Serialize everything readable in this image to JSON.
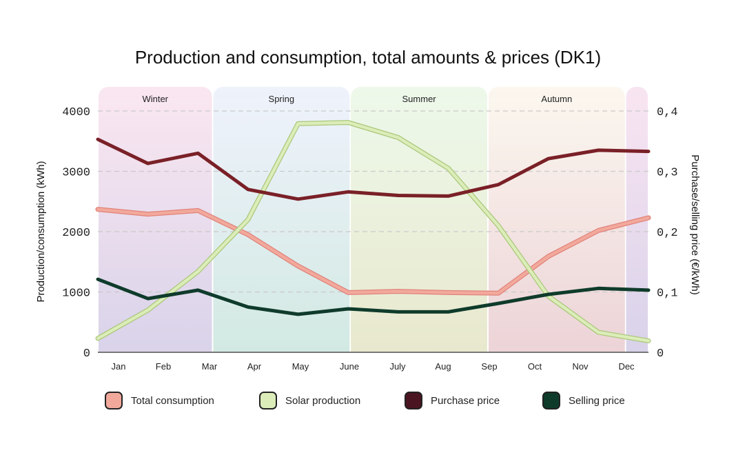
{
  "chart_data": {
    "type": "line",
    "title": "Production and consumption, total amounts & prices (DK1)",
    "ylabel": "Production/consumption (kWh)",
    "y2label": "Purchase/selling price (€/kWh)",
    "ylim": [
      0,
      4400
    ],
    "y2lim": [
      0,
      0.44
    ],
    "yticks": [
      "0",
      "1000",
      "2000",
      "3000",
      "4000"
    ],
    "y2ticks": [
      "0",
      "0,1",
      "0,2",
      "0,3",
      "0,4"
    ],
    "categories": [
      "Jan",
      "Feb",
      "Mar",
      "Apr",
      "May",
      "June",
      "July",
      "Aug",
      "Sep",
      "Oct",
      "Nov",
      "Dec"
    ],
    "seasons": [
      {
        "name": "Winter",
        "color_top": "#f9e6f0",
        "color_bottom": "#d9d3ea",
        "start": 0,
        "end": 2.5
      },
      {
        "name": "Spring",
        "color_top": "#eef2fb",
        "color_bottom": "#d2e9e2",
        "start": 2.5,
        "end": 5.5
      },
      {
        "name": "Summer",
        "color_top": "#edf8ea",
        "color_bottom": "#e8e8cd",
        "start": 5.5,
        "end": 8.5
      },
      {
        "name": "Autumn",
        "color_top": "#fbf6ee",
        "color_bottom": "#ecd3d7",
        "start": 8.5,
        "end": 11.5
      },
      {
        "name": "",
        "color_top": "#f8e4f1",
        "color_bottom": "#d8d2ea",
        "start": 11.5,
        "end": 12
      }
    ],
    "series": [
      {
        "name": "Total consumption",
        "axis": "left",
        "color": "#f2a99c",
        "outline": "#e0827a",
        "values": [
          2370,
          2290,
          2350,
          1950,
          1430,
          990,
          1010,
          990,
          980,
          1590,
          2020,
          2230
        ]
      },
      {
        "name": "Solar production",
        "axis": "left",
        "color": "#dcedb9",
        "outline": "#a9c77b",
        "values": [
          230,
          700,
          1340,
          2200,
          3790,
          3810,
          3560,
          3050,
          2100,
          930,
          330,
          190
        ]
      },
      {
        "name": "Purchase price",
        "axis": "right",
        "color": "#7a2027",
        "outline": "#7a2027",
        "values": [
          0.353,
          0.313,
          0.33,
          0.27,
          0.254,
          0.266,
          0.26,
          0.259,
          0.278,
          0.321,
          0.335,
          0.333
        ]
      },
      {
        "name": "Selling price",
        "axis": "right",
        "color": "#0f3b2b",
        "outline": "#0f3b2b",
        "values": [
          0.121,
          0.089,
          0.103,
          0.075,
          0.063,
          0.072,
          0.067,
          0.067,
          0.081,
          0.096,
          0.106,
          0.103
        ]
      }
    ]
  },
  "legend": [
    {
      "label": "Total consumption",
      "color": "#f2a99c"
    },
    {
      "label": "Solar production",
      "color": "#dcedb9"
    },
    {
      "label": "Purchase price",
      "color": "#4a1420"
    },
    {
      "label": "Selling price",
      "color": "#0f3b2b"
    }
  ]
}
